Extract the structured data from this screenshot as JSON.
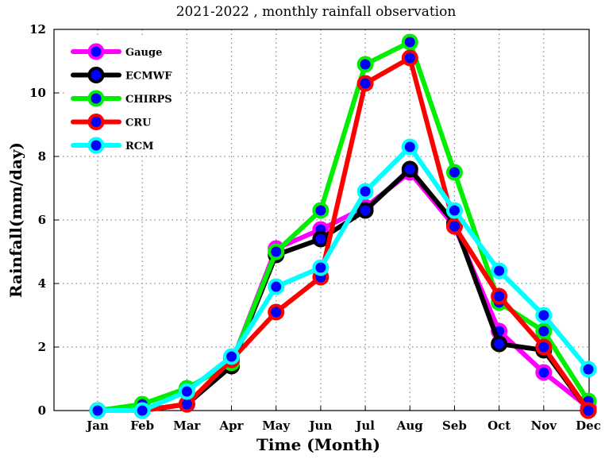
{
  "chart_data": {
    "type": "line",
    "title": "2021-2022  , monthly rainfall observation",
    "xlabel": "Time (Month)",
    "ylabel": "Rainfall(mm/day)",
    "ylim": [
      0,
      12
    ],
    "yticks": [
      0,
      2,
      4,
      6,
      8,
      10,
      12
    ],
    "grid": true,
    "legend_position": "top-left",
    "categories": [
      "Jan",
      "Feb",
      "Mar",
      "Apr",
      "May",
      "Jun",
      "Jul",
      "Aug",
      "Seb",
      "Oct",
      "Nov",
      "Dec"
    ],
    "series": [
      {
        "name": "Gauge",
        "color": "#ff00ff",
        "marker": "#0000ff",
        "values": [
          0,
          0,
          0.2,
          1.5,
          5.1,
          5.7,
          6.4,
          7.5,
          5.8,
          2.5,
          1.2,
          0.1
        ]
      },
      {
        "name": "ECMWF",
        "color": "#000000",
        "marker": "#0000ff",
        "values": [
          0,
          0,
          0.2,
          1.4,
          4.9,
          5.4,
          6.3,
          7.6,
          5.9,
          2.1,
          1.9,
          0
        ]
      },
      {
        "name": "CHIRPS",
        "color": "#00ee00",
        "marker": "#0000ff",
        "values": [
          0,
          0.2,
          0.7,
          1.5,
          5.0,
          6.3,
          10.9,
          11.6,
          7.5,
          3.4,
          2.5,
          0.3
        ]
      },
      {
        "name": "CRU",
        "color": "#ff0000",
        "marker": "#0000ff",
        "values": [
          0,
          0,
          0.2,
          1.6,
          3.1,
          4.2,
          10.3,
          11.1,
          5.8,
          3.6,
          2.0,
          0
        ]
      },
      {
        "name": "RCM",
        "color": "#00ffff",
        "marker": "#0000ff",
        "values": [
          0,
          0,
          0.6,
          1.7,
          3.9,
          4.5,
          6.9,
          8.3,
          6.3,
          4.4,
          3.0,
          1.3
        ]
      }
    ]
  }
}
